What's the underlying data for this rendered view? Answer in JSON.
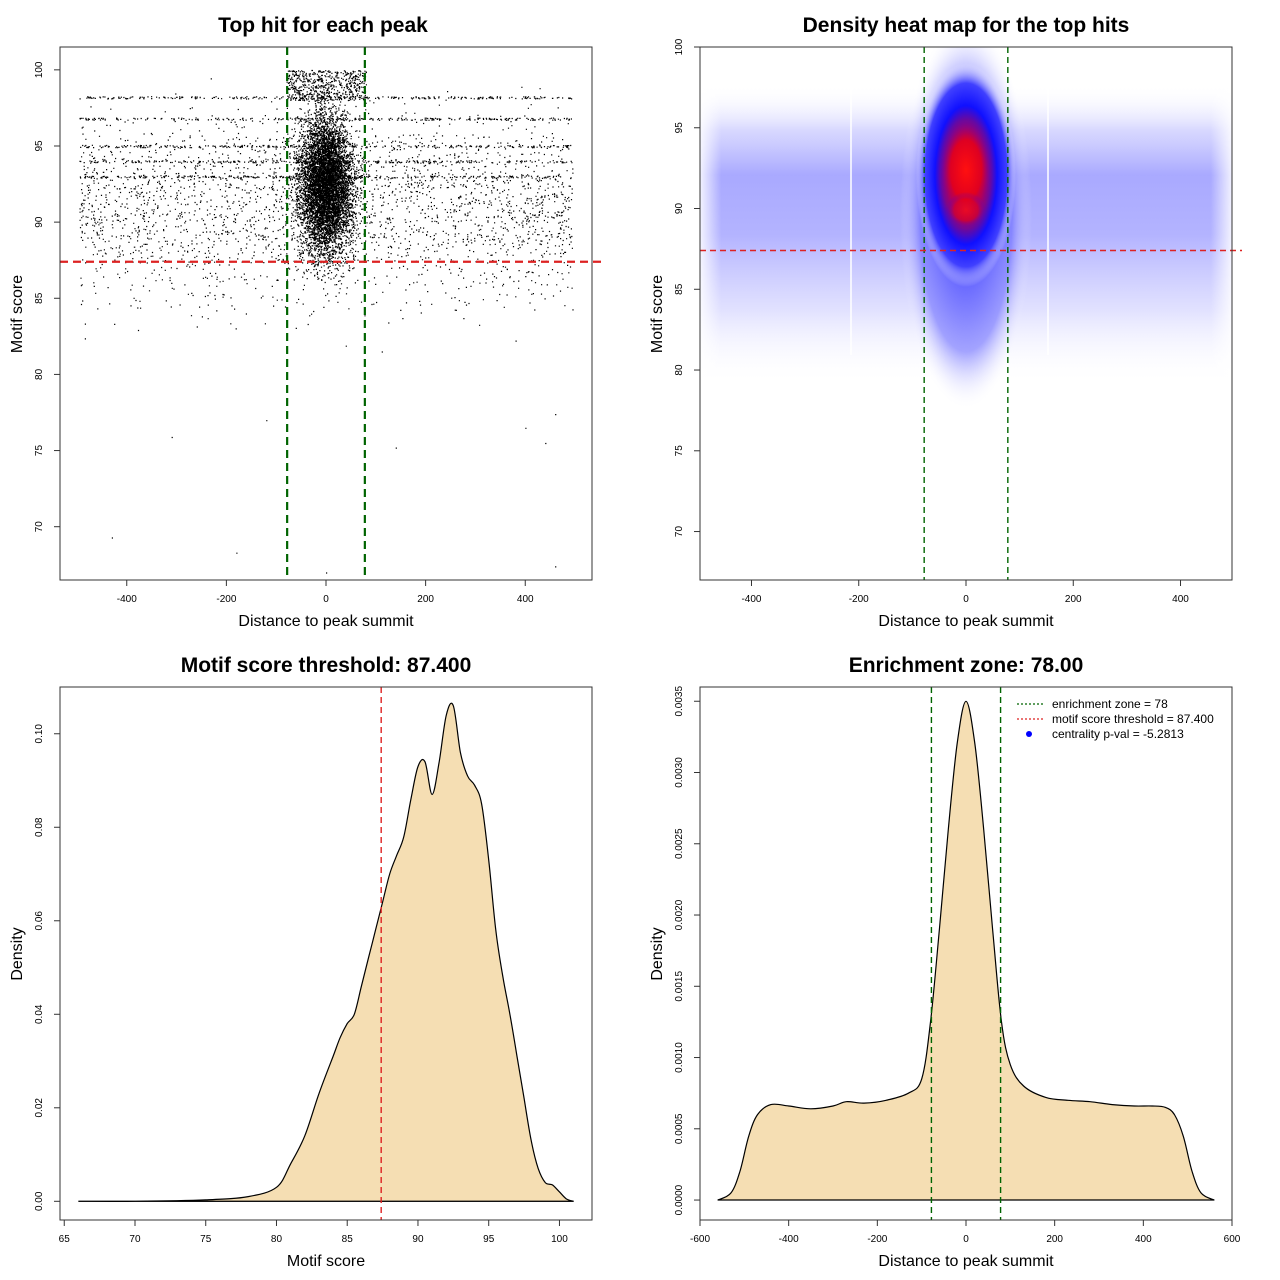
{
  "chart_data": [
    {
      "type": "scatter",
      "title": "Top hit for each peak",
      "xlabel": "Distance to peak summit",
      "ylabel": "Motif score",
      "xlim": [
        -534,
        534
      ],
      "ylim": [
        66.5,
        101.5
      ],
      "xticks": [
        -400,
        -200,
        0,
        200,
        400
      ],
      "yticks": [
        70,
        75,
        80,
        85,
        90,
        95,
        100
      ],
      "point_color": "#000000",
      "point_distribution": {
        "x_range": [
          -495,
          495
        ],
        "y_range": [
          67,
          100
        ],
        "central_cluster_x": [
          -78,
          78
        ],
        "central_cluster_y_mean": 92.5,
        "outliers": [
          [
            -430,
            69.3
          ],
          [
            -180,
            68.3
          ],
          [
            0,
            67
          ],
          [
            460,
            67.4
          ],
          [
            -310,
            75.9
          ],
          [
            -120,
            77
          ],
          [
            140,
            75.2
          ],
          [
            400,
            76.5
          ],
          [
            440,
            75.5
          ],
          [
            460,
            77.4
          ]
        ]
      },
      "hlines": [
        {
          "y": 87.4,
          "color": "#dd2222",
          "dash": true
        }
      ],
      "vlines": [
        {
          "x": -78,
          "color": "#006400",
          "dash": true
        },
        {
          "x": 78,
          "color": "#006400",
          "dash": true
        }
      ]
    },
    {
      "type": "heatmap",
      "title": "Density heat map for the top hits",
      "xlabel": "Distance to peak summit",
      "ylabel": "Motif score",
      "xlim": [
        -496,
        496
      ],
      "ylim": [
        67,
        100
      ],
      "xticks": [
        -400,
        -200,
        0,
        200,
        400
      ],
      "yticks": [
        70,
        75,
        80,
        85,
        90,
        95,
        100
      ],
      "colors": {
        "low": "#ffffff",
        "mid": "#0000ff",
        "high": "#ff0000"
      },
      "peak": {
        "x": 5,
        "y": 92.5
      },
      "hlines": [
        {
          "y": 87.4,
          "color": "#dd2222",
          "dash": true
        }
      ],
      "vlines": [
        {
          "x": -78,
          "color": "#006400",
          "dash": true
        },
        {
          "x": 78,
          "color": "#006400",
          "dash": true
        }
      ]
    },
    {
      "type": "area",
      "title": "Motif score threshold: 87.400",
      "xlabel": "Motif score",
      "ylabel": "Density",
      "xlim": [
        64.7,
        102.3
      ],
      "ylim": [
        -0.004,
        0.11
      ],
      "xticks": [
        65,
        70,
        75,
        80,
        85,
        90,
        95,
        100
      ],
      "yticks": [
        "0.00",
        "0.02",
        "0.04",
        "0.06",
        "0.08",
        "0.10"
      ],
      "fill": "#f5deb3",
      "x": [
        66,
        70,
        75,
        78,
        80,
        81,
        82,
        83,
        84,
        84.5,
        85,
        85.5,
        86,
        86.5,
        87,
        87.5,
        88,
        88.5,
        89,
        89.5,
        90,
        90.5,
        91,
        91.5,
        92,
        92.5,
        93,
        93.5,
        94,
        94.5,
        95,
        95.5,
        96,
        96.5,
        97,
        97.5,
        98,
        98.5,
        99,
        99.5,
        100,
        100.5,
        101
      ],
      "y": [
        0,
        0,
        0.0003,
        0.001,
        0.003,
        0.008,
        0.014,
        0.023,
        0.031,
        0.035,
        0.038,
        0.04,
        0.046,
        0.052,
        0.058,
        0.064,
        0.07,
        0.074,
        0.078,
        0.086,
        0.093,
        0.094,
        0.087,
        0.094,
        0.104,
        0.106,
        0.096,
        0.091,
        0.089,
        0.085,
        0.073,
        0.058,
        0.048,
        0.04,
        0.031,
        0.022,
        0.013,
        0.007,
        0.004,
        0.0035,
        0.002,
        0.0005,
        0
      ]
    },
    {
      "type": "area",
      "title": "Enrichment zone: 78.00",
      "xlabel": "Distance to peak summit",
      "ylabel": "Density",
      "xlim": [
        -600,
        600
      ],
      "ylim": [
        -0.00014,
        0.0036
      ],
      "xticks": [
        -600,
        -400,
        -200,
        0,
        200,
        400,
        600
      ],
      "yticks": [
        "0.0000",
        "0.0005",
        "0.0010",
        "0.0015",
        "0.0020",
        "0.0025",
        "0.0030",
        "0.0035"
      ],
      "fill": "#f5deb3",
      "x": [
        -560,
        -530,
        -510,
        -490,
        -470,
        -440,
        -400,
        -350,
        -300,
        -270,
        -230,
        -180,
        -130,
        -100,
        -80,
        -60,
        -40,
        -20,
        0,
        20,
        40,
        60,
        80,
        100,
        130,
        180,
        230,
        280,
        330,
        380,
        420,
        450,
        470,
        490,
        510,
        530,
        560
      ],
      "y": [
        0,
        5e-05,
        0.0002,
        0.00045,
        0.0006,
        0.00067,
        0.00066,
        0.00064,
        0.00066,
        0.00069,
        0.00068,
        0.0007,
        0.00075,
        0.00085,
        0.00125,
        0.0019,
        0.0026,
        0.0032,
        0.0035,
        0.0032,
        0.0026,
        0.0019,
        0.00125,
        0.00095,
        0.0008,
        0.00072,
        0.0007,
        0.00069,
        0.00067,
        0.00066,
        0.00066,
        0.00065,
        0.0006,
        0.00045,
        0.0002,
        5e-05,
        0
      ],
      "vlines": [
        {
          "x": -78,
          "color": "#006400",
          "dash": true
        },
        {
          "x": 78,
          "color": "#006400",
          "dash": true
        }
      ],
      "legend": {
        "position": "top-right",
        "items": [
          {
            "label": "enrichment zone = 78",
            "color": "#006400",
            "style": "dotted-line"
          },
          {
            "label": "motif score threshold = 87.400",
            "color": "#dd2222",
            "style": "dotted-line"
          },
          {
            "label": "centrality p-val = -5.2813",
            "color": "#0000ff",
            "style": "point"
          }
        ]
      }
    }
  ]
}
